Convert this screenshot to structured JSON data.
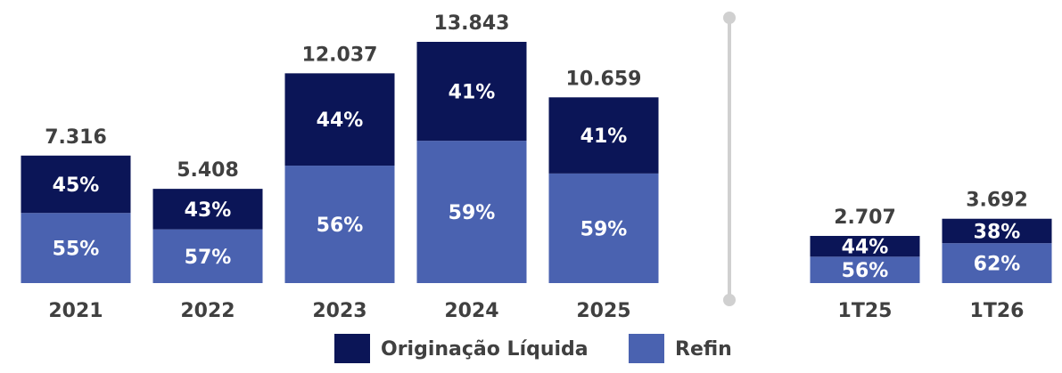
{
  "chart_data": [
    {
      "type": "bar",
      "categories": [
        "2021",
        "2022",
        "2023",
        "2024",
        "2025"
      ],
      "totals": {
        "values": [
          7316,
          5408,
          12037,
          13843,
          10659
        ],
        "value_labels": [
          "7.316",
          "5.408",
          "12.037",
          "13.843",
          "10.659"
        ]
      },
      "series": [
        {
          "name": "Refin",
          "color": "#4a62b0",
          "values": [
            55,
            57,
            56,
            59,
            59
          ],
          "value_labels": [
            "55%",
            "57%",
            "56%",
            "59%",
            "59%"
          ]
        },
        {
          "name": "Originação Líquida",
          "color": "#0b1557",
          "values": [
            45,
            43,
            44,
            41,
            41
          ],
          "value_labels": [
            "45%",
            "43%",
            "44%",
            "41%",
            "41%"
          ]
        }
      ]
    },
    {
      "type": "bar",
      "categories": [
        "1T25",
        "1T26"
      ],
      "totals": {
        "values": [
          2707,
          3692
        ],
        "value_labels": [
          "2.707",
          "3.692"
        ]
      },
      "series": [
        {
          "color": "#4a62b0",
          "values": [
            56,
            62
          ],
          "value_labels": [
            "56%",
            "62%"
          ]
        },
        {
          "color": "#0b1557",
          "values": [
            44,
            38
          ],
          "value_labels": [
            "44%",
            "38%"
          ]
        }
      ]
    }
  ]
}
